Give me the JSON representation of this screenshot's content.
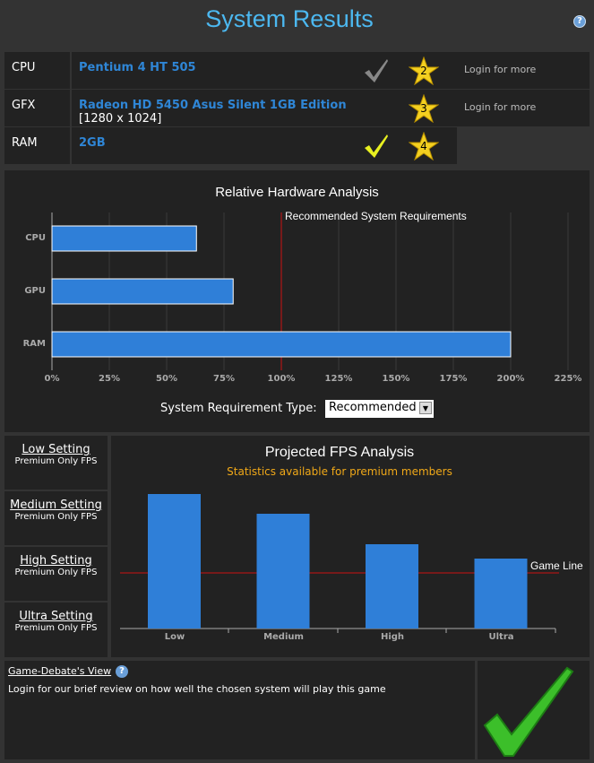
{
  "header": {
    "title": "System Results",
    "help_icon": "question-icon"
  },
  "hardware": [
    {
      "type": "CPU",
      "name": "Pentium 4 HT 505",
      "sub": "",
      "check": "grey",
      "rating": "2",
      "login": "Login for more"
    },
    {
      "type": "GFX",
      "name": "Radeon HD 5450 Asus Silent 1GB Edition",
      "sub": "[1280 x 1024]",
      "check": "",
      "rating": "3",
      "login": "Login for more"
    },
    {
      "type": "RAM",
      "name": "2GB",
      "sub": "",
      "check": "yellow",
      "rating": "4",
      "login": ""
    }
  ],
  "colors": {
    "accent": "#4cb8f0",
    "bar": "#2f7fd8",
    "line": "#cc1111",
    "premium": "#f0a818",
    "check_green": "#3cbf2a"
  },
  "select": {
    "label": "System Requirement Type:",
    "value": "Recommended"
  },
  "settings": [
    {
      "label": "Low Setting",
      "sub": "Premium Only FPS"
    },
    {
      "label": "Medium Setting",
      "sub": "Premium Only FPS"
    },
    {
      "label": "High Setting",
      "sub": "Premium Only FPS"
    },
    {
      "label": "Ultra Setting",
      "sub": "Premium Only FPS"
    }
  ],
  "review": {
    "title": "Game-Debate's View",
    "text": "Login for our brief review on how well the chosen system will play this game"
  },
  "chart_data": [
    {
      "type": "bar",
      "orientation": "horizontal",
      "title": "Relative Hardware Analysis",
      "categories": [
        "CPU",
        "GPU",
        "RAM"
      ],
      "values": [
        63,
        79,
        200
      ],
      "xlim": [
        0,
        225
      ],
      "xticks": [
        "0%",
        "25%",
        "50%",
        "75%",
        "100%",
        "125%",
        "150%",
        "175%",
        "200%",
        "225%"
      ],
      "reference": {
        "value": 100,
        "label": "Recommended System Requirements"
      },
      "grid": true
    },
    {
      "type": "bar",
      "title": "Projected FPS Analysis",
      "subtitle": "Statistics available for premium members",
      "categories": [
        "Low",
        "Medium",
        "High",
        "Ultra"
      ],
      "values": [
        75,
        64,
        47,
        39
      ],
      "ylim": [
        0,
        80
      ],
      "reference": {
        "value": 31,
        "label": "Game Line"
      }
    }
  ]
}
